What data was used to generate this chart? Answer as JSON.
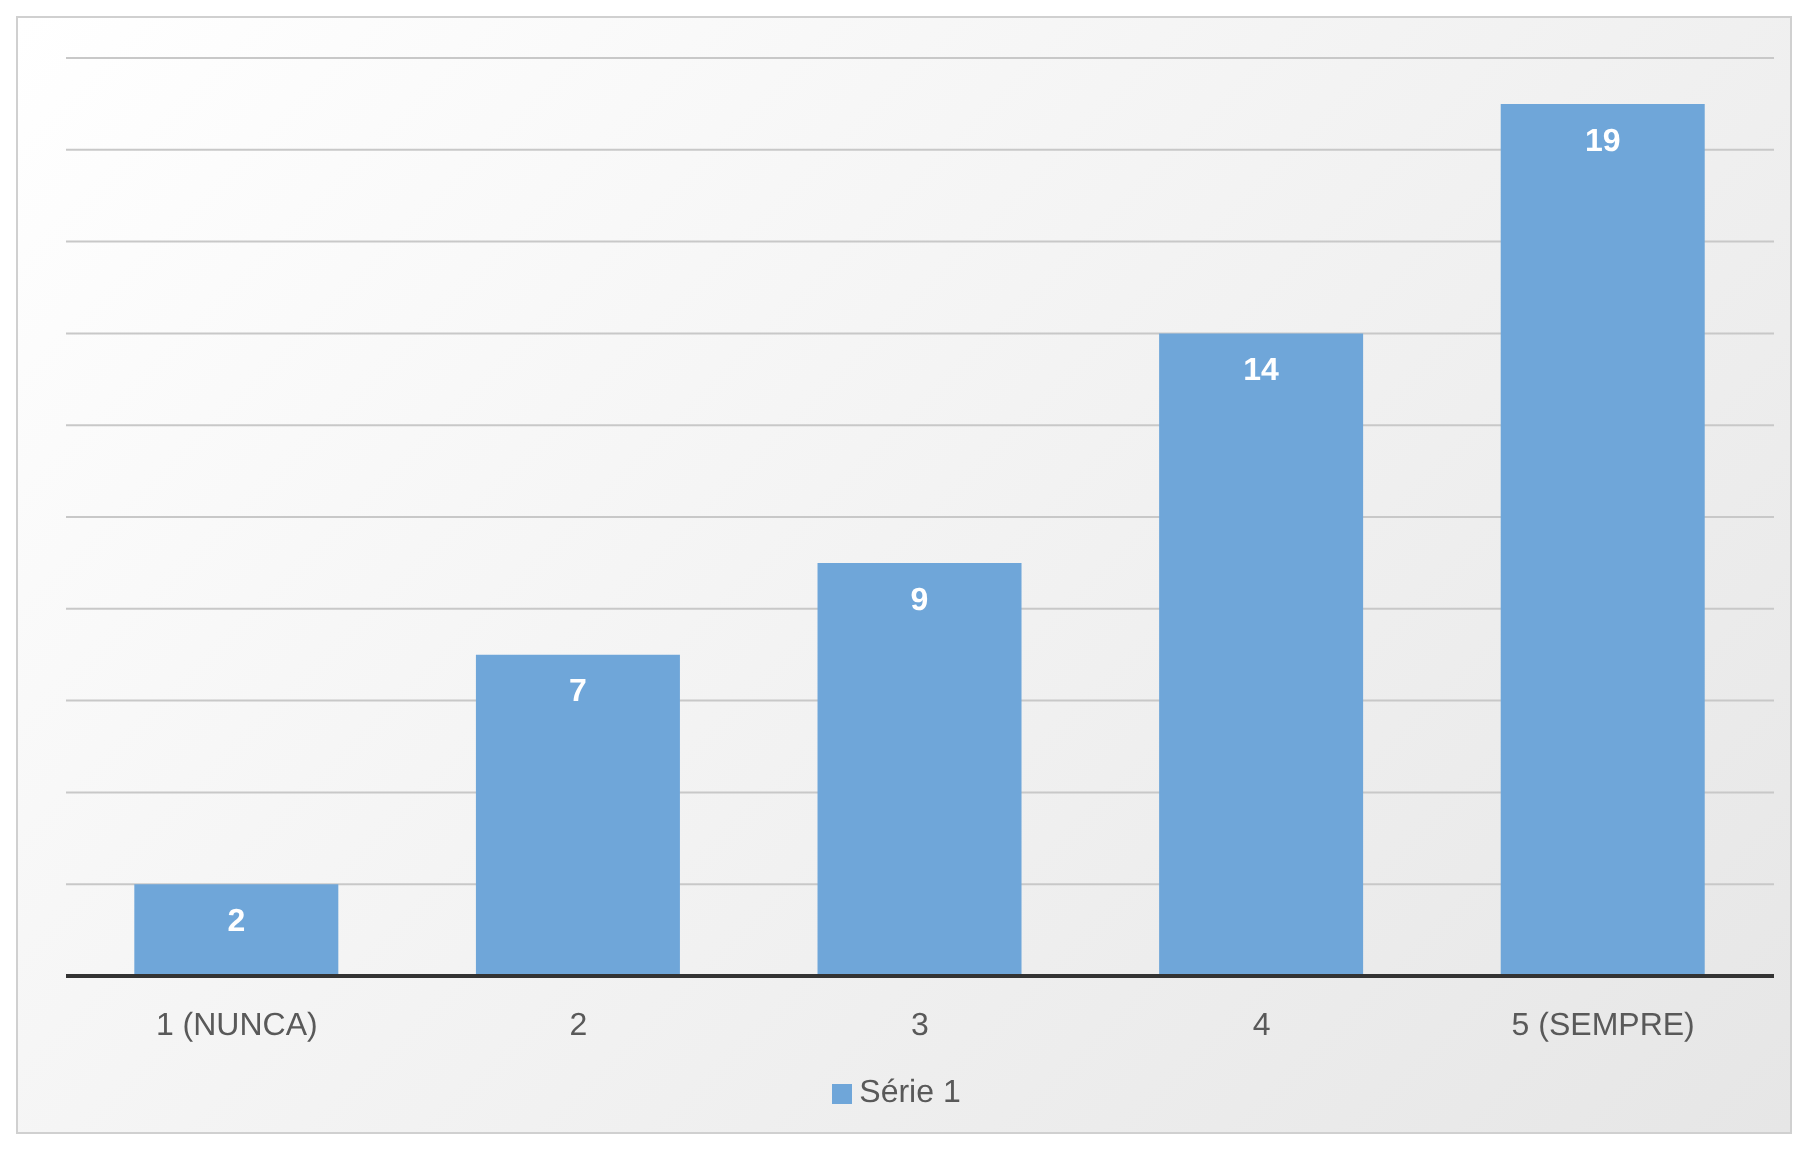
{
  "chart_data": {
    "type": "bar",
    "categories": [
      "1 (NUNCA)",
      "2",
      "3",
      "4",
      "5 (SEMPRE)"
    ],
    "series": [
      {
        "name": "Série 1",
        "color": "#6fa6d9",
        "values": [
          2,
          7,
          9,
          14,
          19
        ]
      }
    ],
    "ylim": [
      0,
      20
    ],
    "yticks": [
      {
        "value": 0,
        "label": null
      },
      {
        "value": 2,
        "label": null
      },
      {
        "value": 4,
        "label": null
      },
      {
        "value": 6,
        "label": null
      },
      {
        "value": 8,
        "label": null
      },
      {
        "value": 10,
        "label": null
      },
      {
        "value": 12,
        "label": null
      },
      {
        "value": 14,
        "label": null
      },
      {
        "value": 16,
        "label": null
      },
      {
        "value": 18,
        "label": null
      },
      {
        "value": 20,
        "label": null
      }
    ],
    "grid": "y",
    "tick_labels": "x",
    "data_labels": true,
    "legend": "bottom"
  }
}
